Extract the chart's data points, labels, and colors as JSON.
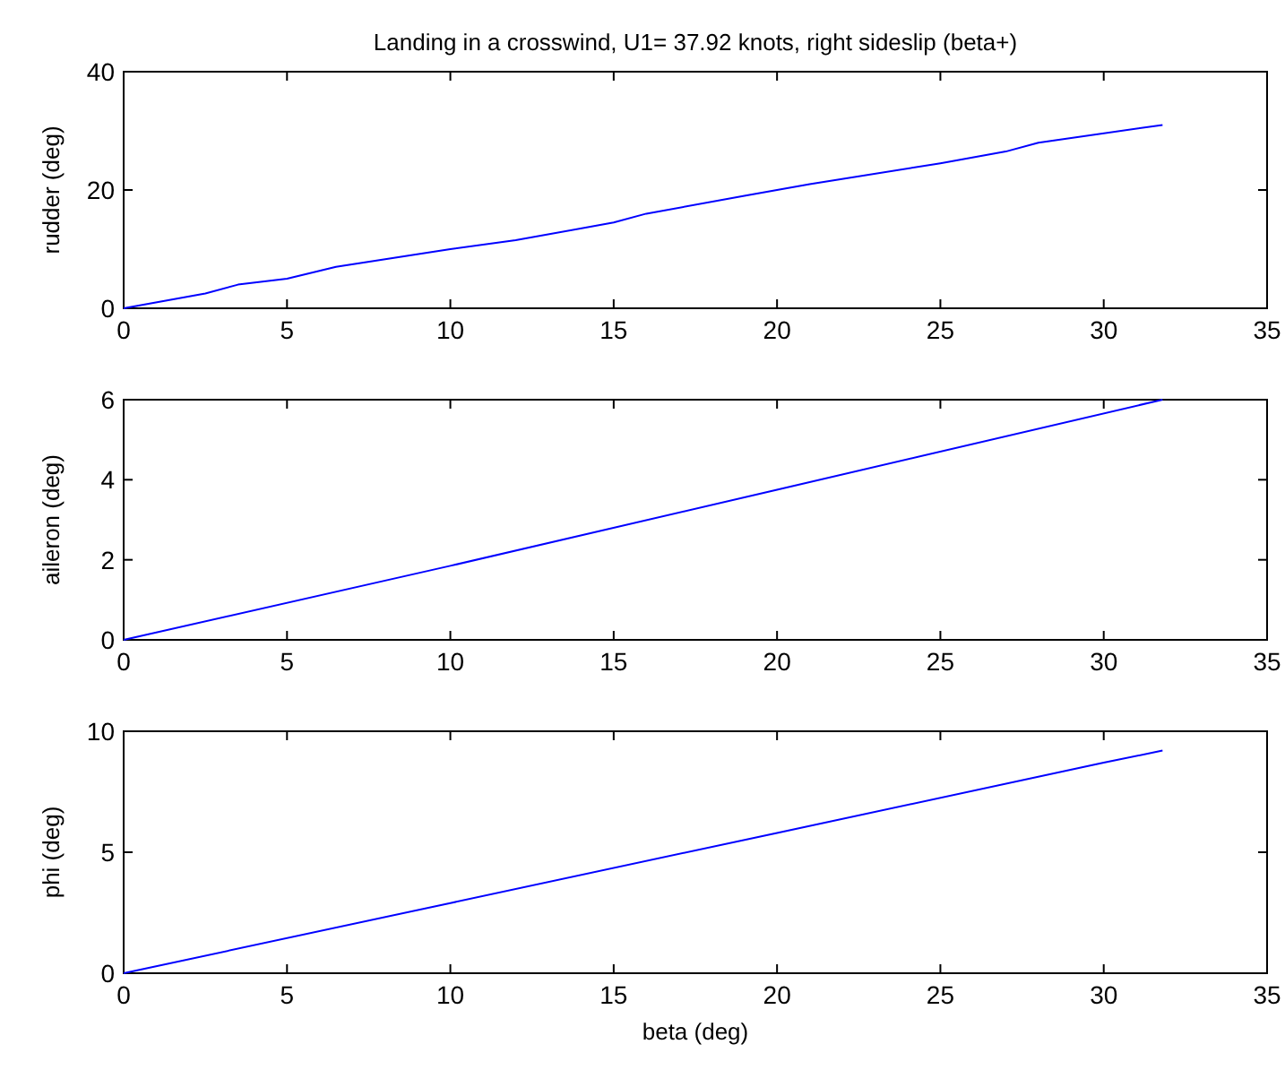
{
  "chart_data": [
    {
      "type": "line",
      "title": "Landing in a crosswind, U1= 37.92 knots, right sideslip (beta+)",
      "ylabel": "rudder (deg)",
      "xlim": [
        0,
        35
      ],
      "xticks": [
        0,
        5,
        10,
        15,
        20,
        25,
        30,
        35
      ],
      "ylim": [
        0,
        40
      ],
      "yticks": [
        0,
        20,
        40
      ],
      "series": [
        {
          "color": "#0000ff",
          "x": [
            0,
            2.5,
            3.5,
            5,
            6.5,
            10,
            12,
            15,
            16,
            19,
            21,
            25,
            27,
            28,
            31.8
          ],
          "values": [
            0,
            2.5,
            4,
            5,
            7,
            10,
            11.5,
            14.5,
            16,
            19,
            21,
            24.5,
            26.5,
            28,
            31
          ]
        }
      ]
    },
    {
      "type": "line",
      "ylabel": "aileron (deg)",
      "xlim": [
        0,
        35
      ],
      "xticks": [
        0,
        5,
        10,
        15,
        20,
        25,
        30,
        35
      ],
      "ylim": [
        0,
        6
      ],
      "yticks": [
        0,
        2,
        4,
        6
      ],
      "series": [
        {
          "color": "#0000ff",
          "x": [
            0,
            10,
            20,
            31.8
          ],
          "values": [
            0,
            1.85,
            3.75,
            6
          ]
        }
      ]
    },
    {
      "type": "line",
      "ylabel": "phi (deg)",
      "xlabel": "beta (deg)",
      "xlim": [
        0,
        35
      ],
      "xticks": [
        0,
        5,
        10,
        15,
        20,
        25,
        30,
        35
      ],
      "ylim": [
        0,
        10
      ],
      "yticks": [
        0,
        5,
        10
      ],
      "series": [
        {
          "color": "#0000ff",
          "x": [
            0,
            10,
            20,
            30,
            31.8
          ],
          "values": [
            0,
            2.9,
            5.8,
            8.7,
            9.2
          ]
        }
      ]
    }
  ]
}
